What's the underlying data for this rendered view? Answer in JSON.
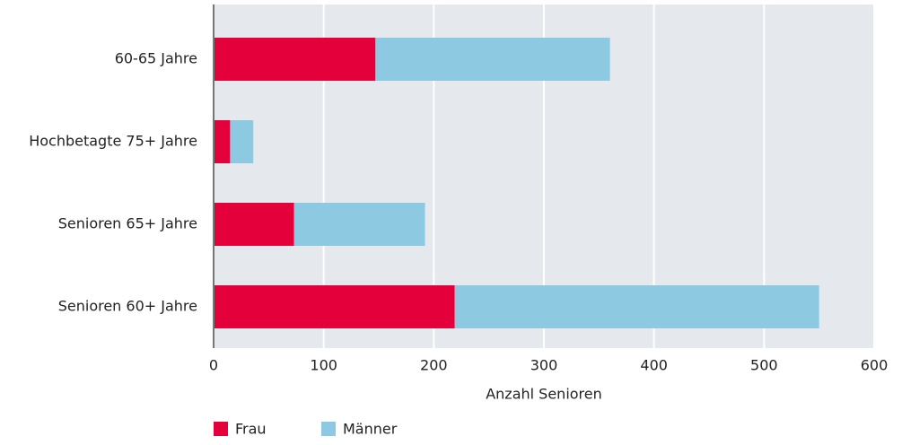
{
  "chart_data": {
    "type": "stacked-bar-horizontal",
    "categories": [
      "60-65 Jahre",
      "Hochbetagte 75+ Jahre",
      "Senioren 65+ Jahre",
      "Senioren 60+ Jahre"
    ],
    "series": [
      {
        "name": "Frau",
        "color": "#e4003a",
        "values": [
          147,
          15,
          73,
          219
        ]
      },
      {
        "name": "Männer",
        "color": "#8ec9e2",
        "values": [
          213,
          21,
          119,
          331
        ]
      }
    ],
    "xlabel": "Anzahl Senioren",
    "xlim": [
      0,
      600
    ],
    "xticks": [
      0,
      100,
      200,
      300,
      400,
      500,
      600
    ],
    "grid": true,
    "legend": "bottom-left"
  }
}
